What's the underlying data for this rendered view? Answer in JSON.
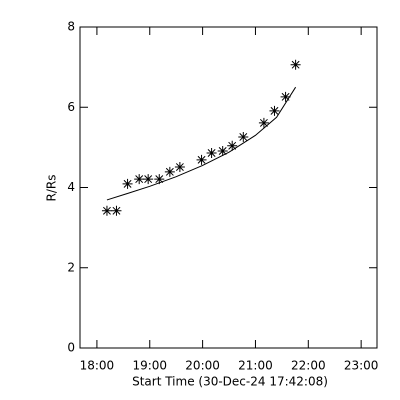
{
  "chart_data": {
    "type": "scatter",
    "xlabel": "Start Time (30-Dec-24 17:42:08)",
    "ylabel": "R/Rs",
    "xlim": [
      17.68,
      23.3
    ],
    "ylim": [
      0,
      8
    ],
    "xticks": [
      {
        "value": 18,
        "label": "18:00"
      },
      {
        "value": 19,
        "label": "19:00"
      },
      {
        "value": 20,
        "label": "20:00"
      },
      {
        "value": 21,
        "label": "21:00"
      },
      {
        "value": 22,
        "label": "22:00"
      },
      {
        "value": 23,
        "label": "23:00"
      }
    ],
    "yticks": [
      0,
      2,
      4,
      6,
      8
    ],
    "color": "#000000",
    "series": [
      {
        "marker": "asterisk",
        "x": [
          18.19,
          18.37,
          18.58,
          18.8,
          18.97,
          19.18,
          19.38,
          19.57,
          19.98,
          20.17,
          20.38,
          20.56,
          20.77,
          21.16,
          21.36,
          21.57,
          21.76
        ],
        "values": [
          3.42,
          3.42,
          4.09,
          4.21,
          4.21,
          4.21,
          4.39,
          4.51,
          4.69,
          4.86,
          4.91,
          5.04,
          5.26,
          5.61,
          5.91,
          6.26,
          7.06
        ]
      },
      {
        "marker": "line",
        "x": [
          18.19,
          18.6,
          19.0,
          19.5,
          20.0,
          20.5,
          21.0,
          21.4,
          21.76
        ],
        "values": [
          3.69,
          3.86,
          4.03,
          4.27,
          4.55,
          4.88,
          5.3,
          5.75,
          6.5
        ]
      }
    ]
  }
}
